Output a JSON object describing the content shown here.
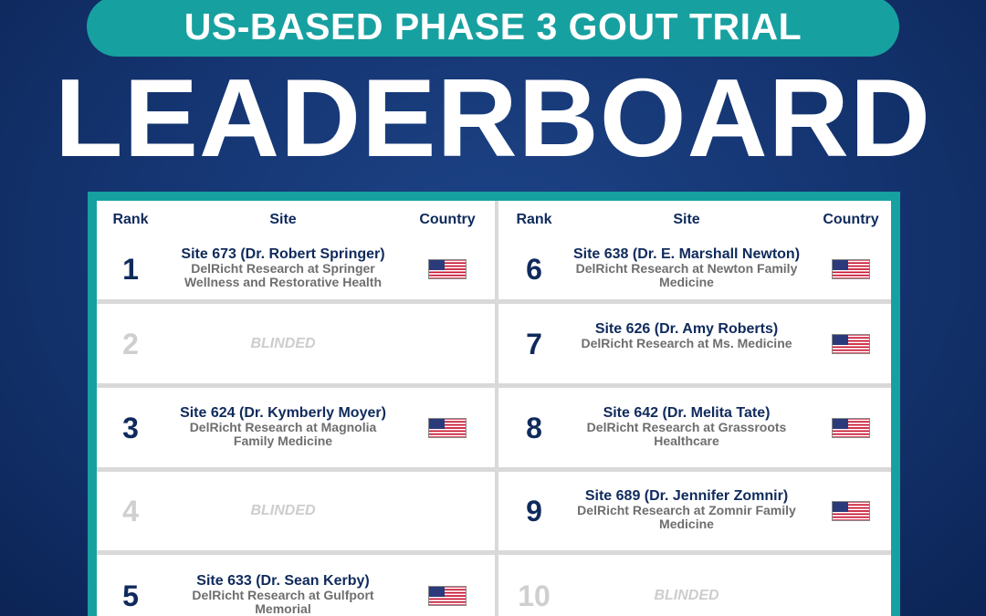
{
  "header": {
    "subtitle": "US-BASED PHASE 3 GOUT TRIAL",
    "title": "LEADERBOARD"
  },
  "leaderboard": {
    "columns": [
      {
        "rank": "Rank",
        "site": "Site",
        "country": "Country"
      },
      {
        "rank": "Rank",
        "site": "Site",
        "country": "Country"
      }
    ],
    "entries": [
      {
        "rank": 1,
        "site": "Site 673 (Dr. Robert Springer)",
        "location": "DelRicht Research at Springer Wellness and Restorative Health"
      },
      {
        "rank": 2,
        "status": "BLINDED"
      },
      {
        "rank": 3,
        "site": "Site 624 (Dr. Kymberly Moyer)",
        "location": "DelRicht Research at Magnolia Family Medicine"
      },
      {
        "rank": 4,
        "status": "BLINDED"
      },
      {
        "rank": 5,
        "site": "Site 633 (Dr. Sean Kerby)",
        "location": "DelRicht Research at Gulfport Memorial"
      },
      {
        "rank": 6,
        "site": "Site 638 (Dr. E. Marshall Newton)",
        "location": "DelRicht Research at Newton Family Medicine"
      },
      {
        "rank": 7,
        "site": "Site 626 (Dr. Amy Roberts)",
        "location": "DelRicht Research at Ms. Medicine"
      },
      {
        "rank": 8,
        "site": "Site 642 (Dr. Melita Tate)",
        "location": "DelRicht Research at Grassroots Healthcare"
      },
      {
        "rank": 9,
        "site": "Site 689 (Dr. Jennifer Zomnir)",
        "location": "DelRicht Research at Zomnir Family Medicine"
      },
      {
        "rank": 10,
        "status": "BLINDED"
      }
    ]
  }
}
